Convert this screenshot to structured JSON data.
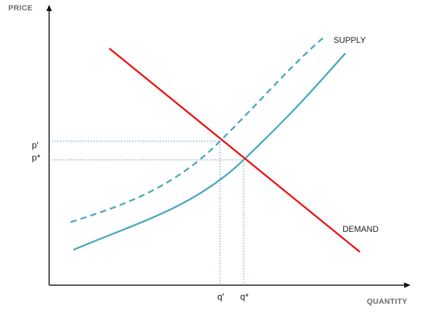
{
  "diagram": {
    "axes": {
      "y_title": "PRICE",
      "x_title": "QUANTITY"
    },
    "price_labels": [
      "p'",
      "p*"
    ],
    "quantity_labels": [
      "q'",
      "q*"
    ],
    "curves": {
      "supply_label": "SUPPLY",
      "demand_label": "DEMAND"
    },
    "colors": {
      "supply": "#4aa9bf",
      "demand": "#ee1111",
      "guides": "#4a7fb5",
      "axes": "#111111"
    }
  }
}
